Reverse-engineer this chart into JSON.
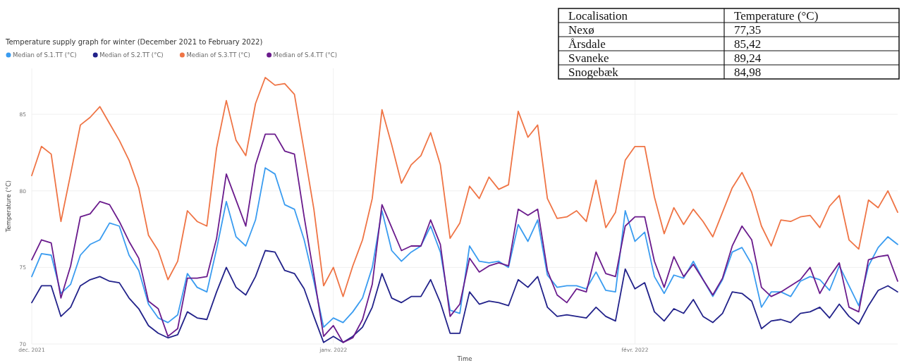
{
  "chart_data": [
    {
      "type": "line",
      "title": "Temperature supply graph for winter (December 2021 to February 2022)",
      "xlabel": "Time",
      "ylabel": "Temperature (°C)",
      "legend": "top left",
      "grid": true,
      "marker": "none",
      "line_style": "solid",
      "ylim": [
        70,
        88
      ],
      "yticks": [
        70,
        75,
        80,
        85
      ],
      "xlim": [
        "2021-12-01",
        "2022-02-28"
      ],
      "xticks": [
        {
          "value": "2021-12-01",
          "label": "dec. 2021"
        },
        {
          "value": "2022-01-01",
          "label": "janv. 2022"
        },
        {
          "value": "2022-02-01",
          "label": "févr. 2022"
        }
      ],
      "x": [
        "2021-12-01",
        "2021-12-02",
        "2021-12-03",
        "2021-12-04",
        "2021-12-05",
        "2021-12-06",
        "2021-12-07",
        "2021-12-08",
        "2021-12-09",
        "2021-12-10",
        "2021-12-11",
        "2021-12-12",
        "2021-12-13",
        "2021-12-14",
        "2021-12-15",
        "2021-12-16",
        "2021-12-17",
        "2021-12-18",
        "2021-12-19",
        "2021-12-20",
        "2021-12-21",
        "2021-12-22",
        "2021-12-23",
        "2021-12-24",
        "2021-12-25",
        "2021-12-26",
        "2021-12-27",
        "2021-12-28",
        "2021-12-29",
        "2021-12-30",
        "2021-12-31",
        "2022-01-01",
        "2022-01-02",
        "2022-01-03",
        "2022-01-04",
        "2022-01-05",
        "2022-01-06",
        "2022-01-07",
        "2022-01-08",
        "2022-01-09",
        "2022-01-10",
        "2022-01-11",
        "2022-01-12",
        "2022-01-13",
        "2022-01-14",
        "2022-01-15",
        "2022-01-16",
        "2022-01-17",
        "2022-01-18",
        "2022-01-19",
        "2022-01-20",
        "2022-01-21",
        "2022-01-22",
        "2022-01-23",
        "2022-01-24",
        "2022-01-25",
        "2022-01-26",
        "2022-01-27",
        "2022-01-28",
        "2022-01-29",
        "2022-01-30",
        "2022-01-31",
        "2022-02-01",
        "2022-02-02",
        "2022-02-03",
        "2022-02-04",
        "2022-02-05",
        "2022-02-06",
        "2022-02-07",
        "2022-02-08",
        "2022-02-09",
        "2022-02-10",
        "2022-02-11",
        "2022-02-12",
        "2022-02-13",
        "2022-02-14",
        "2022-02-15",
        "2022-02-16",
        "2022-02-17",
        "2022-02-18",
        "2022-02-19",
        "2022-02-20",
        "2022-02-21",
        "2022-02-22",
        "2022-02-23",
        "2022-02-24",
        "2022-02-25",
        "2022-02-26",
        "2022-02-27",
        "2022-02-28"
      ],
      "series": [
        {
          "name": "Median of S.1.TT (°C)",
          "color": "#3a9cf0",
          "values": [
            74.4,
            75.9,
            75.8,
            73.3,
            73.9,
            75.8,
            76.5,
            76.8,
            77.9,
            77.7,
            75.8,
            74.8,
            72.6,
            71.7,
            71.4,
            71.9,
            74.6,
            73.7,
            73.4,
            76.2,
            79.3,
            77.0,
            76.4,
            78.1,
            81.5,
            81.1,
            79.1,
            78.8,
            76.8,
            74.1,
            71.1,
            71.7,
            71.4,
            72.1,
            73.0,
            75.0,
            78.7,
            76.1,
            75.4,
            76.0,
            76.4,
            77.7,
            76.0,
            72.2,
            72.0,
            76.4,
            75.4,
            75.3,
            75.4,
            75.0,
            77.8,
            76.7,
            78.1,
            74.5,
            73.7,
            73.8,
            73.8,
            73.6,
            74.7,
            73.5,
            73.4,
            78.7,
            76.7,
            77.3,
            74.4,
            73.3,
            74.5,
            74.3,
            75.4,
            74.2,
            73.1,
            74.2,
            76.0,
            76.3,
            75.2,
            72.4,
            73.4,
            73.4,
            73.1,
            74.1,
            74.4,
            74.2,
            73.5,
            75.1,
            73.8,
            72.5,
            75.1,
            76.3,
            77.0,
            76.5
          ]
        },
        {
          "name": "Median of S.2.TT (°C)",
          "color": "#22228a",
          "values": [
            72.7,
            73.8,
            73.8,
            71.8,
            72.4,
            73.8,
            74.2,
            74.4,
            74.1,
            74.0,
            73.0,
            72.3,
            71.2,
            70.7,
            70.4,
            70.6,
            72.1,
            71.7,
            71.6,
            73.4,
            75.0,
            73.7,
            73.2,
            74.4,
            76.1,
            76.0,
            74.8,
            74.6,
            73.6,
            71.8,
            70.1,
            70.5,
            70.1,
            70.5,
            71.1,
            72.4,
            74.6,
            73.0,
            72.7,
            73.1,
            73.1,
            74.2,
            72.7,
            70.7,
            70.7,
            73.4,
            72.6,
            72.8,
            72.7,
            72.5,
            74.2,
            73.7,
            74.4,
            72.4,
            71.8,
            71.9,
            71.8,
            71.7,
            72.4,
            71.8,
            71.5,
            74.9,
            73.6,
            74.0,
            72.1,
            71.5,
            72.3,
            72.0,
            72.9,
            71.8,
            71.4,
            72.0,
            73.4,
            73.3,
            72.8,
            71.0,
            71.5,
            71.6,
            71.4,
            72.0,
            72.1,
            72.4,
            71.7,
            72.6,
            71.8,
            71.3,
            72.5,
            73.5,
            73.8,
            73.4
          ]
        },
        {
          "name": "Median of S.3.TT (°C)",
          "color": "#ef7445",
          "values": [
            81.0,
            82.9,
            82.4,
            78.0,
            81.1,
            84.3,
            84.8,
            85.5,
            84.4,
            83.3,
            82.0,
            80.2,
            77.1,
            76.1,
            74.2,
            75.4,
            78.7,
            78.0,
            77.7,
            82.8,
            85.9,
            83.3,
            82.3,
            85.7,
            87.4,
            86.9,
            87.0,
            86.3,
            82.6,
            78.8,
            73.8,
            75.0,
            73.1,
            75.1,
            76.8,
            79.5,
            85.3,
            83.0,
            80.5,
            81.7,
            82.3,
            83.8,
            81.7,
            76.9,
            77.9,
            80.3,
            79.5,
            80.9,
            80.1,
            80.4,
            85.2,
            83.5,
            84.3,
            79.5,
            78.2,
            78.3,
            78.7,
            78.0,
            80.7,
            77.6,
            78.6,
            82.0,
            82.9,
            82.9,
            79.6,
            77.2,
            78.9,
            77.8,
            78.8,
            78.0,
            77.0,
            78.6,
            80.2,
            81.2,
            79.9,
            77.7,
            76.4,
            78.1,
            78.0,
            78.3,
            78.4,
            77.6,
            79.0,
            79.7,
            76.8,
            76.2,
            79.4,
            78.9,
            80.0,
            78.6
          ]
        },
        {
          "name": "Median of S.4.TT (°C)",
          "color": "#6a1b8c",
          "values": [
            75.5,
            76.8,
            76.6,
            73.0,
            75.1,
            78.3,
            78.5,
            79.3,
            79.1,
            78.0,
            76.7,
            75.6,
            72.8,
            72.3,
            70.5,
            71.0,
            74.3,
            74.3,
            74.4,
            76.9,
            81.1,
            79.4,
            77.7,
            81.7,
            83.7,
            83.7,
            82.6,
            82.4,
            78.3,
            74.5,
            70.5,
            71.2,
            70.1,
            70.4,
            71.6,
            73.9,
            79.1,
            77.6,
            76.1,
            76.4,
            76.4,
            78.1,
            76.5,
            71.8,
            72.6,
            75.6,
            74.7,
            75.1,
            75.3,
            75.1,
            78.8,
            78.4,
            78.8,
            74.8,
            73.2,
            72.7,
            73.6,
            73.4,
            76.0,
            74.6,
            74.4,
            77.7,
            78.3,
            78.3,
            75.4,
            73.7,
            75.7,
            74.4,
            75.2,
            74.2,
            73.2,
            74.3,
            76.4,
            77.7,
            76.8,
            73.7,
            73.1,
            73.4,
            73.8,
            74.2,
            75.0,
            73.3,
            74.4,
            75.3,
            72.4,
            72.1,
            75.5,
            75.7,
            75.8,
            74.1
          ]
        }
      ]
    },
    {
      "type": "other",
      "annotations": [
        "Localisation",
        "Temperature (°C)"
      ],
      "categories": [
        "Nexø",
        "Årsdale",
        "Svaneke",
        "Snogebæk"
      ],
      "value_labels": [
        "77,35",
        "85,42",
        "89,24",
        "84,98"
      ]
    }
  ]
}
